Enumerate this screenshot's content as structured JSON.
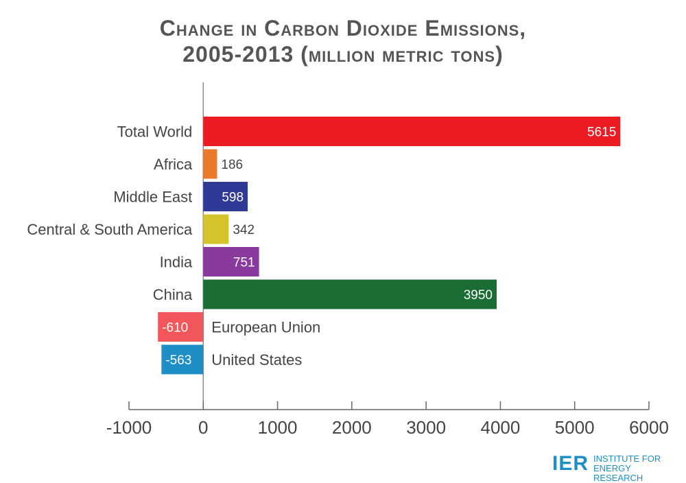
{
  "chart_data": {
    "type": "bar",
    "orientation": "horizontal",
    "title_line1": "Change in Carbon Dioxide Emissions,",
    "title_line2": "2005-2013 (million metric tons)",
    "categories": [
      "Total World",
      "Africa",
      "Middle East",
      "Central & South America",
      "India",
      "China",
      "European Union",
      "United States"
    ],
    "values": [
      5615,
      186,
      598,
      342,
      751,
      3950,
      -610,
      -563
    ],
    "colors": [
      "#ed1c24",
      "#e97a2a",
      "#2e3a96",
      "#d4c32a",
      "#8a3a9c",
      "#1a6e35",
      "#f0565a",
      "#1d8fc4"
    ],
    "xlim": [
      -1000,
      6000
    ],
    "xticks": [
      "-1000",
      "0",
      "1000",
      "2000",
      "3000",
      "4000",
      "5000",
      "6000"
    ],
    "grid": false,
    "legend": "none"
  },
  "logo": {
    "mark": "IER",
    "line1": "INSTITUTE FOR",
    "line2": "ENERGY RESEARCH"
  }
}
